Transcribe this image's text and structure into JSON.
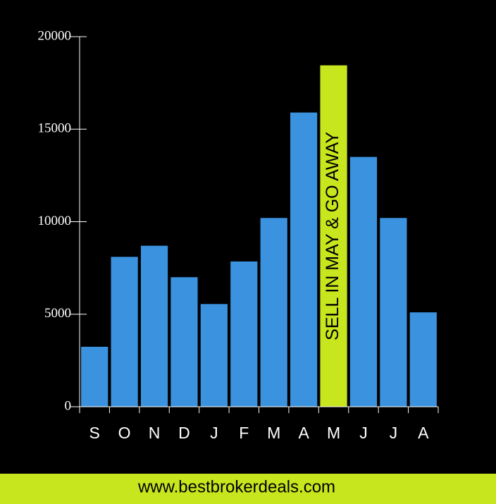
{
  "chart_data": {
    "type": "bar",
    "categories": [
      "S",
      "O",
      "N",
      "D",
      "J",
      "F",
      "M",
      "A",
      "M",
      "J",
      "J",
      "A"
    ],
    "values": [
      3240,
      8100,
      8700,
      7000,
      5550,
      7850,
      10200,
      15900,
      18450,
      13500,
      10200,
      5100
    ],
    "colors": [
      "#3b93e0",
      "#3b93e0",
      "#3b93e0",
      "#3b93e0",
      "#3b93e0",
      "#3b93e0",
      "#3b93e0",
      "#3b93e0",
      "#c8e61e",
      "#3b93e0",
      "#3b93e0",
      "#3b93e0"
    ],
    "ylim": [
      0,
      20000
    ],
    "yticks": [
      0,
      5000,
      10000,
      15000,
      20000
    ],
    "grid": false,
    "annotation": "SELL IN MAY & GO AWAY",
    "annotation_index": 8
  },
  "footer": "www.bestbrokerdeals.com"
}
